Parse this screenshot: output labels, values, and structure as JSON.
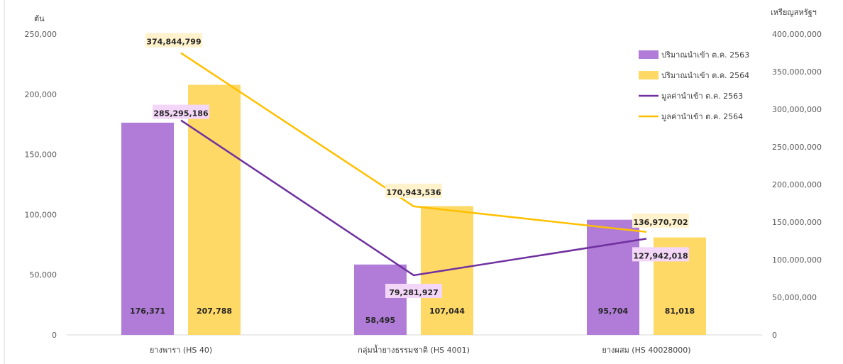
{
  "chart_data": {
    "type": "bar",
    "categories": [
      "ยางพารา (HS 40)",
      "กลุ่มน้ำยางธรรมชาติ (HS 4001)",
      "ยางผสม (HS 40028000)"
    ],
    "y_left": {
      "label": "ตัน",
      "ylim": [
        0,
        250000
      ],
      "ticks": [
        "0",
        "50,000",
        "100,000",
        "150,000",
        "200,000",
        "250,000"
      ],
      "tick_values": [
        0,
        50000,
        100000,
        150000,
        200000,
        250000
      ]
    },
    "y_right": {
      "label": "เหรียญสหรัฐฯ",
      "ylim": [
        0,
        400000000
      ],
      "ticks": [
        "0",
        "50,000,000",
        "100,000,000",
        "150,000,000",
        "200,000,000",
        "250,000,000",
        "300,000,000",
        "350,000,000",
        "400,000,000"
      ],
      "tick_values": [
        0,
        50000000,
        100000000,
        150000000,
        200000000,
        250000000,
        300000000,
        350000000,
        400000000
      ]
    },
    "grid": false,
    "legend_position": "top-right",
    "series": [
      {
        "name": "ปริมาณนำเข้า ต.ค. 2563",
        "kind": "bar",
        "axis": "left",
        "color": "#b07cd8",
        "values": [
          176371,
          58495,
          95704
        ],
        "labels": [
          "176,371",
          "58,495",
          "95,704"
        ]
      },
      {
        "name": "ปริมาณนำเข้า ต.ค. 2564",
        "kind": "bar",
        "axis": "left",
        "color": "#ffd966",
        "values": [
          207788,
          107044,
          81018
        ],
        "labels": [
          "207,788",
          "107,044",
          "81,018"
        ]
      },
      {
        "name": "มูลค่านำเข้า ต.ค. 2563",
        "kind": "line",
        "axis": "right",
        "color": "#7030a0",
        "label_bg": "#f3d6f8",
        "values": [
          285295186,
          79281927,
          127942018
        ],
        "labels": [
          "285,295,186",
          "79,281,927",
          "127,942,018"
        ]
      },
      {
        "name": "มูลค่านำเข้า ต.ค. 2564",
        "kind": "line",
        "axis": "right",
        "color": "#ffc000",
        "label_bg": "#fff2cc",
        "values": [
          374844799,
          170943536,
          136970702
        ],
        "labels": [
          "374,844,799",
          "170,943,536",
          "136,970,702"
        ]
      }
    ]
  }
}
